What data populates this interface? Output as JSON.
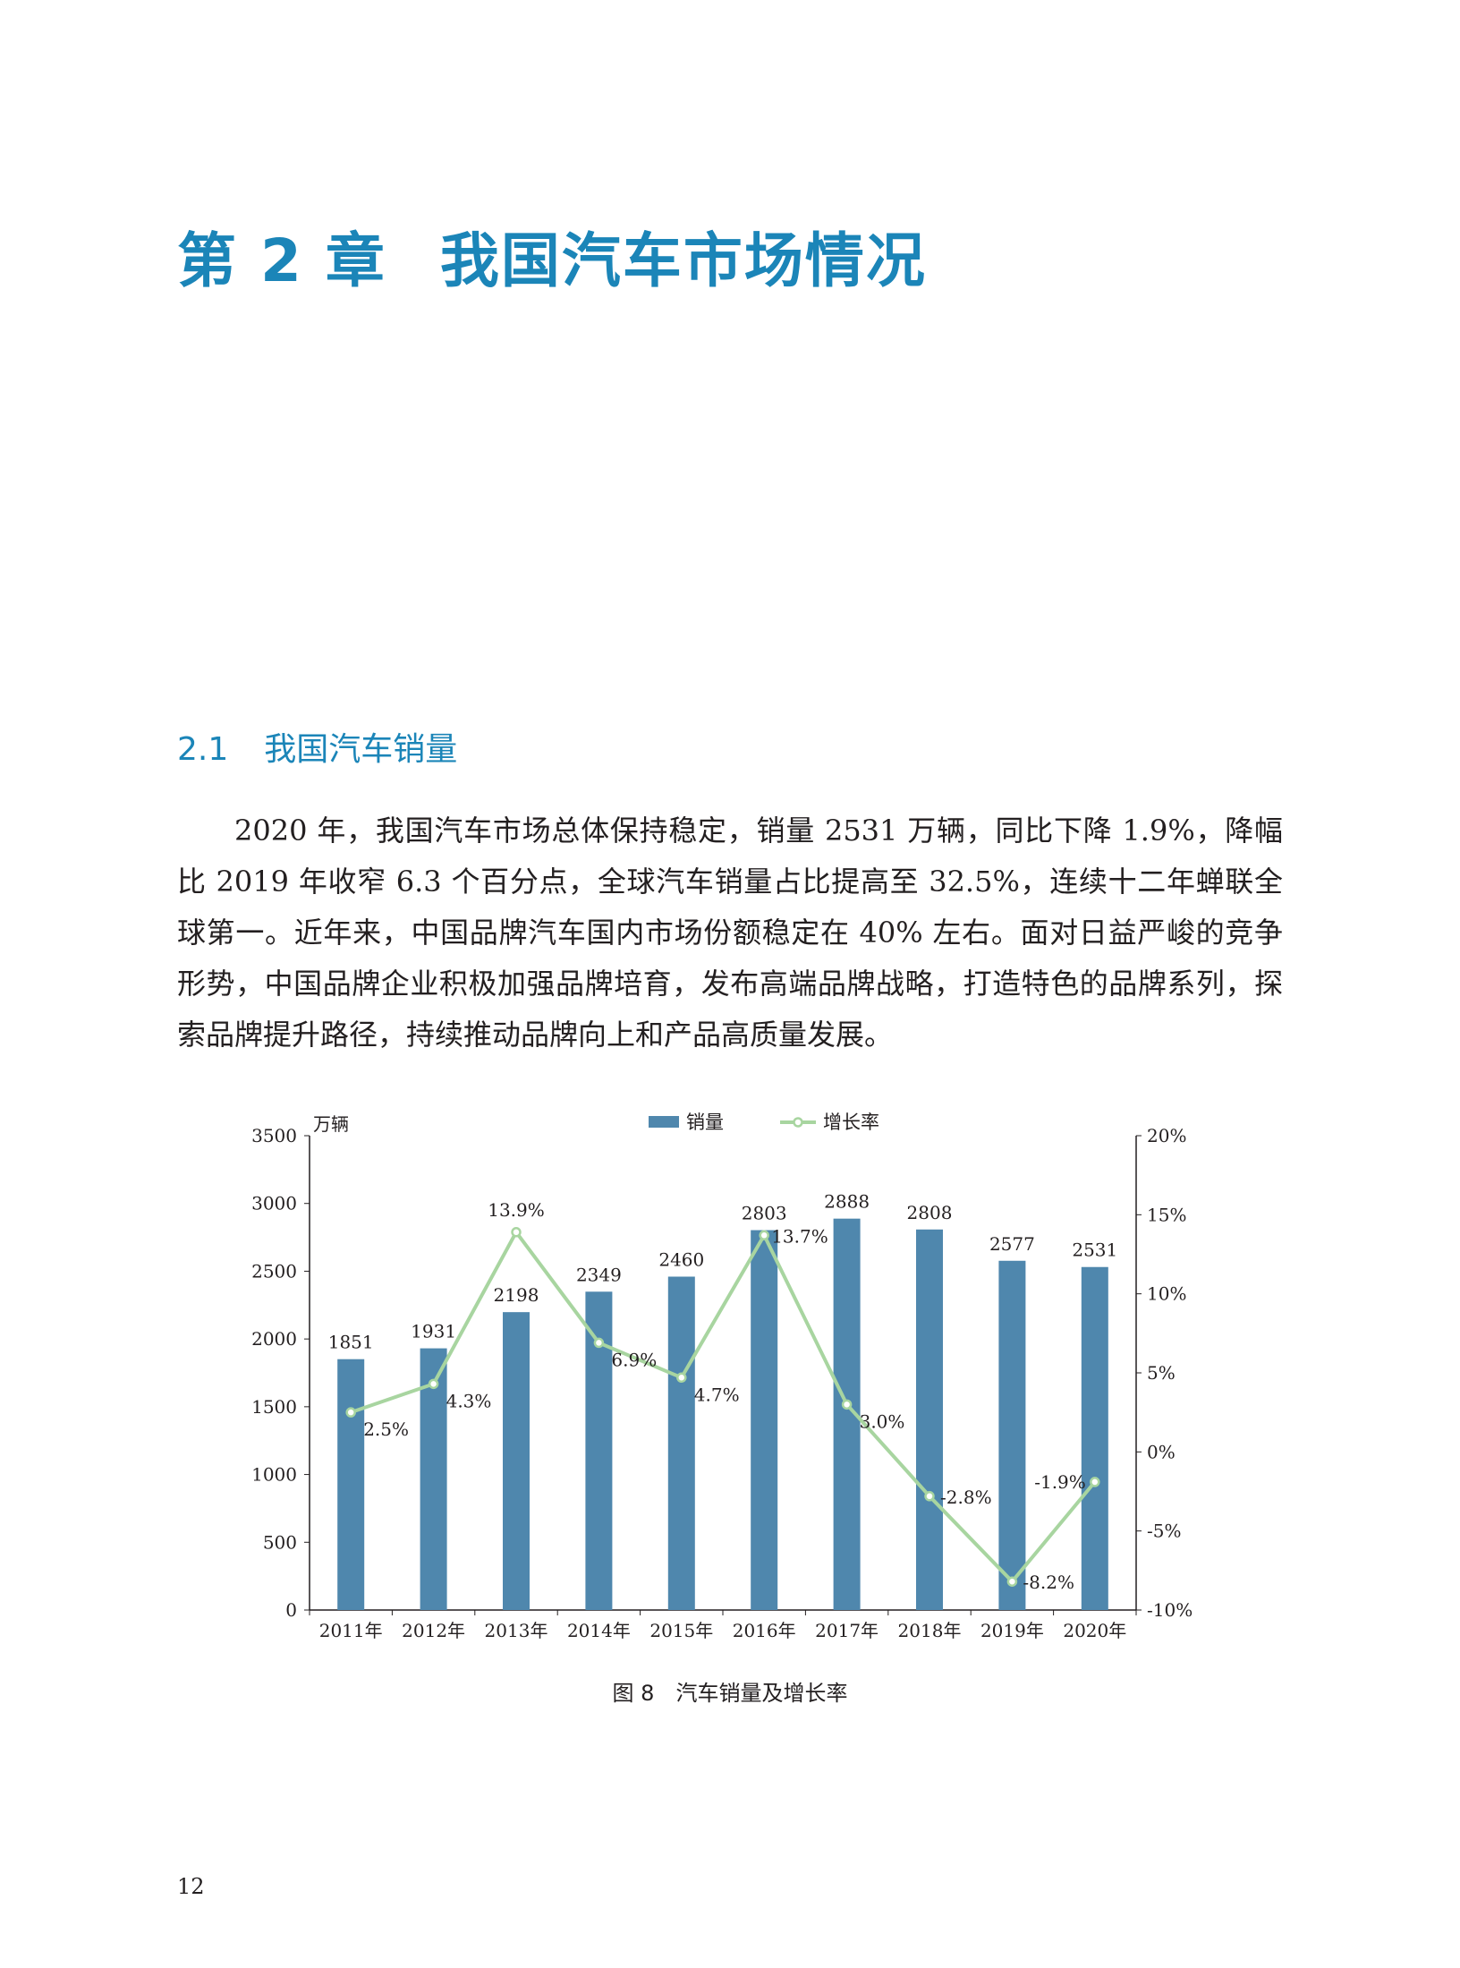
{
  "chapter": {
    "number": "第 2 章",
    "title": "我国汽车市场情况"
  },
  "section": {
    "number": "2.1",
    "title": "我国汽车销量"
  },
  "body_text": "2020 年，我国汽车市场总体保持稳定，销量 2531 万辆，同比下降 1.9%，降幅比 2019 年收窄 6.3 个百分点，全球汽车销量占比提高至 32.5%，连续十二年蝉联全球第一。近年来，中国品牌汽车国内市场份额稳定在 40% 左右。面对日益严峻的竞争形势，中国品牌企业积极加强品牌培育，发布高端品牌战略，打造特色的品牌系列，探索品牌提升路径，持续推动品牌向上和产品高质量发展。",
  "figure": {
    "label": "图 8",
    "caption": "汽车销量及增长率"
  },
  "page_number": "12",
  "chart_data": {
    "type": "bar+line",
    "categories": [
      "2011年",
      "2012年",
      "2013年",
      "2014年",
      "2015年",
      "2016年",
      "2017年",
      "2018年",
      "2019年",
      "2020年"
    ],
    "y_unit": "万辆",
    "ylim": [
      0,
      3500
    ],
    "yticks": [
      "0",
      "500",
      "1000",
      "1500",
      "2000",
      "2500",
      "3000",
      "3500"
    ],
    "y2lim": [
      -10,
      20
    ],
    "y2ticks": [
      "-10%",
      "-5%",
      "0%",
      "5%",
      "10%",
      "15%",
      "20%"
    ],
    "legend_position": "top-center",
    "grid": false,
    "series": [
      {
        "name": "销量",
        "kind": "bar",
        "axis": "left",
        "color": "#4f87ad",
        "values": [
          1851,
          1931,
          2198,
          2349,
          2460,
          2803,
          2888,
          2808,
          2577,
          2531
        ],
        "labels": [
          "1851",
          "1931",
          "2198",
          "2349",
          "2460",
          "2803",
          "2888",
          "2808",
          "2577",
          "2531"
        ]
      },
      {
        "name": "增长率",
        "kind": "line",
        "axis": "right",
        "color": "#a8d5a0",
        "values": [
          2.5,
          4.3,
          13.9,
          6.9,
          4.7,
          13.7,
          3.0,
          -2.8,
          -8.2,
          -1.9
        ],
        "labels": [
          "2.5%",
          "4.3%",
          "13.9%",
          "6.9%",
          "4.7%",
          "13.7%",
          "3.0%",
          "-2.8%",
          "-8.2%",
          "-1.9%"
        ]
      }
    ]
  }
}
